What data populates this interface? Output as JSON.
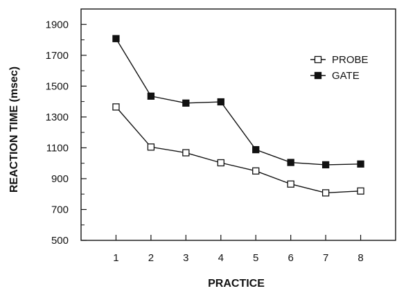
{
  "chart_data": {
    "type": "line",
    "title": "",
    "xlabel": "PRACTICE",
    "ylabel": "REACTION TIME (msec)",
    "x": [
      1,
      2,
      3,
      4,
      5,
      6,
      7,
      8
    ],
    "xlim": [
      0,
      9
    ],
    "ylim": [
      500,
      2000
    ],
    "yticks": [
      500,
      700,
      900,
      1100,
      1300,
      1500,
      1700,
      1900
    ],
    "grid": false,
    "legend_position": "top-right",
    "series": [
      {
        "name": "PROBE",
        "marker": "open-square",
        "values": [
          1365,
          1105,
          1068,
          1003,
          950,
          865,
          808,
          820
        ]
      },
      {
        "name": "GATE",
        "marker": "filled-square",
        "values": [
          1808,
          1435,
          1390,
          1398,
          1088,
          1005,
          990,
          995
        ]
      }
    ],
    "colors": {
      "line": "#111111",
      "marker_fill": "#111111",
      "background": "#ffffff"
    }
  }
}
